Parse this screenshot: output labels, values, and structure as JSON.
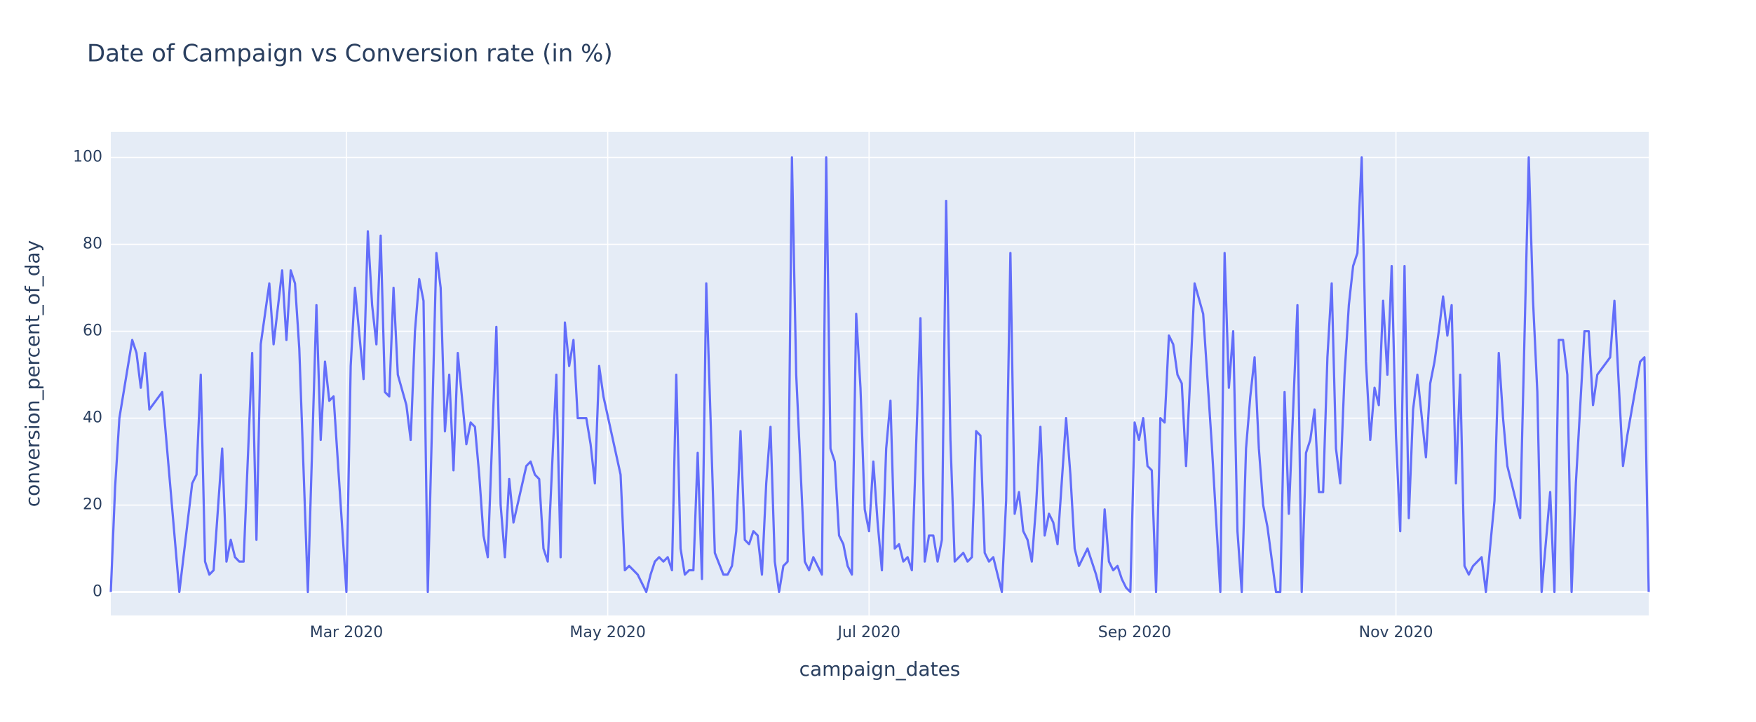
{
  "chart_data": {
    "type": "line",
    "title": "Date of Campaign vs Conversion rate (in %)",
    "x_label": "campaign_dates",
    "y_label": "conversion_percent_of_day",
    "color": "#636efa",
    "grid": true,
    "xlim": [
      "2020-01-06",
      "2020-12-30"
    ],
    "ylim": [
      -5.4,
      105.9
    ],
    "yticks": [
      0,
      20,
      40,
      60,
      80,
      100
    ],
    "xticks": [
      {
        "value": "2020-03-01",
        "label": "Mar 2020"
      },
      {
        "value": "2020-05-01",
        "label": "May 2020"
      },
      {
        "value": "2020-07-01",
        "label": "Jul 2020"
      },
      {
        "value": "2020-09-01",
        "label": "Sep 2020"
      },
      {
        "value": "2020-11-01",
        "label": "Nov 2020"
      }
    ],
    "x": [
      "2020-01-06",
      "2020-01-07",
      "2020-01-08",
      "2020-01-11",
      "2020-01-12",
      "2020-01-13",
      "2020-01-14",
      "2020-01-15",
      "2020-01-18",
      "2020-01-22",
      "2020-01-25",
      "2020-01-26",
      "2020-01-27",
      "2020-01-28",
      "2020-01-29",
      "2020-01-30",
      "2020-02-01",
      "2020-02-02",
      "2020-02-03",
      "2020-02-04",
      "2020-02-05",
      "2020-02-06",
      "2020-02-08",
      "2020-02-09",
      "2020-02-10",
      "2020-02-12",
      "2020-02-13",
      "2020-02-15",
      "2020-02-16",
      "2020-02-17",
      "2020-02-18",
      "2020-02-19",
      "2020-02-21",
      "2020-02-23",
      "2020-02-24",
      "2020-02-25",
      "2020-02-26",
      "2020-02-27",
      "2020-03-01",
      "2020-03-02",
      "2020-03-03",
      "2020-03-05",
      "2020-03-06",
      "2020-03-07",
      "2020-03-08",
      "2020-03-09",
      "2020-03-10",
      "2020-03-11",
      "2020-03-12",
      "2020-03-13",
      "2020-03-15",
      "2020-03-16",
      "2020-03-17",
      "2020-03-18",
      "2020-03-19",
      "2020-03-20",
      "2020-03-22",
      "2020-03-23",
      "2020-03-24",
      "2020-03-25",
      "2020-03-26",
      "2020-03-27",
      "2020-03-29",
      "2020-03-30",
      "2020-03-31",
      "2020-04-01",
      "2020-04-02",
      "2020-04-03",
      "2020-04-05",
      "2020-04-06",
      "2020-04-07",
      "2020-04-08",
      "2020-04-09",
      "2020-04-12",
      "2020-04-13",
      "2020-04-14",
      "2020-04-15",
      "2020-04-16",
      "2020-04-17",
      "2020-04-19",
      "2020-04-20",
      "2020-04-21",
      "2020-04-22",
      "2020-04-23",
      "2020-04-24",
      "2020-04-26",
      "2020-04-27",
      "2020-04-28",
      "2020-04-29",
      "2020-04-30",
      "2020-05-04",
      "2020-05-05",
      "2020-05-06",
      "2020-05-07",
      "2020-05-08",
      "2020-05-09",
      "2020-05-10",
      "2020-05-11",
      "2020-05-12",
      "2020-05-13",
      "2020-05-14",
      "2020-05-15",
      "2020-05-16",
      "2020-05-17",
      "2020-05-18",
      "2020-05-19",
      "2020-05-20",
      "2020-05-21",
      "2020-05-22",
      "2020-05-23",
      "2020-05-24",
      "2020-05-26",
      "2020-05-28",
      "2020-05-29",
      "2020-05-30",
      "2020-05-31",
      "2020-06-01",
      "2020-06-02",
      "2020-06-03",
      "2020-06-04",
      "2020-06-05",
      "2020-06-06",
      "2020-06-07",
      "2020-06-08",
      "2020-06-09",
      "2020-06-10",
      "2020-06-11",
      "2020-06-12",
      "2020-06-13",
      "2020-06-14",
      "2020-06-16",
      "2020-06-17",
      "2020-06-18",
      "2020-06-19",
      "2020-06-20",
      "2020-06-21",
      "2020-06-22",
      "2020-06-23",
      "2020-06-24",
      "2020-06-25",
      "2020-06-26",
      "2020-06-27",
      "2020-06-28",
      "2020-06-29",
      "2020-06-30",
      "2020-07-01",
      "2020-07-02",
      "2020-07-03",
      "2020-07-04",
      "2020-07-05",
      "2020-07-06",
      "2020-07-07",
      "2020-07-08",
      "2020-07-09",
      "2020-07-10",
      "2020-07-11",
      "2020-07-13",
      "2020-07-14",
      "2020-07-15",
      "2020-07-16",
      "2020-07-17",
      "2020-07-18",
      "2020-07-19",
      "2020-07-20",
      "2020-07-21",
      "2020-07-22",
      "2020-07-23",
      "2020-07-24",
      "2020-07-25",
      "2020-07-26",
      "2020-07-27",
      "2020-07-28",
      "2020-07-29",
      "2020-07-30",
      "2020-07-31",
      "2020-08-01",
      "2020-08-02",
      "2020-08-03",
      "2020-08-04",
      "2020-08-05",
      "2020-08-06",
      "2020-08-07",
      "2020-08-08",
      "2020-08-09",
      "2020-08-10",
      "2020-08-11",
      "2020-08-12",
      "2020-08-13",
      "2020-08-14",
      "2020-08-16",
      "2020-08-17",
      "2020-08-18",
      "2020-08-19",
      "2020-08-20",
      "2020-08-21",
      "2020-08-23",
      "2020-08-24",
      "2020-08-25",
      "2020-08-26",
      "2020-08-27",
      "2020-08-28",
      "2020-08-29",
      "2020-08-30",
      "2020-08-31",
      "2020-09-01",
      "2020-09-02",
      "2020-09-03",
      "2020-09-04",
      "2020-09-05",
      "2020-09-06",
      "2020-09-07",
      "2020-09-08",
      "2020-09-09",
      "2020-09-10",
      "2020-09-11",
      "2020-09-12",
      "2020-09-13",
      "2020-09-15",
      "2020-09-17",
      "2020-09-19",
      "2020-09-21",
      "2020-09-22",
      "2020-09-23",
      "2020-09-24",
      "2020-09-25",
      "2020-09-26",
      "2020-09-27",
      "2020-09-28",
      "2020-09-29",
      "2020-09-30",
      "2020-10-01",
      "2020-10-02",
      "2020-10-04",
      "2020-10-05",
      "2020-10-06",
      "2020-10-07",
      "2020-10-09",
      "2020-10-10",
      "2020-10-11",
      "2020-10-12",
      "2020-10-13",
      "2020-10-14",
      "2020-10-15",
      "2020-10-16",
      "2020-10-17",
      "2020-10-18",
      "2020-10-19",
      "2020-10-20",
      "2020-10-21",
      "2020-10-22",
      "2020-10-23",
      "2020-10-24",
      "2020-10-25",
      "2020-10-26",
      "2020-10-27",
      "2020-10-28",
      "2020-10-29",
      "2020-10-30",
      "2020-10-31",
      "2020-11-01",
      "2020-11-02",
      "2020-11-03",
      "2020-11-04",
      "2020-11-05",
      "2020-11-06",
      "2020-11-08",
      "2020-11-09",
      "2020-11-10",
      "2020-11-11",
      "2020-11-12",
      "2020-11-13",
      "2020-11-14",
      "2020-11-15",
      "2020-11-16",
      "2020-11-17",
      "2020-11-18",
      "2020-11-19",
      "2020-11-21",
      "2020-11-22",
      "2020-11-24",
      "2020-11-25",
      "2020-11-26",
      "2020-11-27",
      "2020-11-30",
      "2020-12-02",
      "2020-12-03",
      "2020-12-04",
      "2020-12-05",
      "2020-12-07",
      "2020-12-08",
      "2020-12-09",
      "2020-12-10",
      "2020-12-11",
      "2020-12-12",
      "2020-12-13",
      "2020-12-15",
      "2020-12-16",
      "2020-12-17",
      "2020-12-18",
      "2020-12-21",
      "2020-12-22",
      "2020-12-24",
      "2020-12-25",
      "2020-12-28",
      "2020-12-29",
      "2020-12-30"
    ],
    "values": [
      0,
      24,
      40,
      58,
      55,
      47,
      55,
      42,
      46,
      0,
      25,
      27,
      50,
      7,
      4,
      5,
      33,
      7,
      12,
      8,
      7,
      7,
      55,
      12,
      57,
      71,
      57,
      74,
      58,
      74,
      71,
      56,
      0,
      66,
      35,
      53,
      44,
      45,
      0,
      52,
      70,
      49,
      83,
      66,
      57,
      82,
      46,
      45,
      70,
      50,
      43,
      35,
      60,
      72,
      67,
      0,
      78,
      70,
      37,
      50,
      28,
      55,
      34,
      39,
      38,
      27,
      13,
      8,
      61,
      20,
      8,
      26,
      16,
      29,
      30,
      27,
      26,
      10,
      7,
      50,
      8,
      62,
      52,
      58,
      40,
      40,
      34,
      25,
      52,
      45,
      27,
      5,
      6,
      5,
      4,
      2,
      0,
      4,
      7,
      8,
      7,
      8,
      5,
      50,
      10,
      4,
      5,
      5,
      32,
      3,
      71,
      9,
      4,
      4,
      6,
      14,
      37,
      12,
      11,
      14,
      13,
      4,
      25,
      38,
      7,
      0,
      6,
      7,
      100,
      50,
      7,
      5,
      8,
      6,
      4,
      100,
      33,
      30,
      13,
      11,
      6,
      4,
      64,
      47,
      19,
      14,
      30,
      16,
      5,
      33,
      44,
      10,
      11,
      7,
      8,
      5,
      63,
      7,
      13,
      13,
      7,
      12,
      90,
      35,
      7,
      8,
      9,
      7,
      8,
      37,
      36,
      9,
      7,
      8,
      4,
      0,
      21,
      78,
      18,
      23,
      14,
      12,
      7,
      20,
      38,
      13,
      18,
      16,
      11,
      40,
      27,
      10,
      6,
      8,
      10,
      4,
      0,
      19,
      7,
      5,
      6,
      3,
      1,
      0,
      39,
      35,
      40,
      29,
      28,
      0,
      40,
      39,
      59,
      57,
      50,
      48,
      29,
      71,
      64,
      34,
      0,
      78,
      47,
      60,
      14,
      0,
      33,
      45,
      54,
      33,
      20,
      15,
      0,
      0,
      46,
      18,
      66,
      0,
      32,
      35,
      42,
      23,
      23,
      54,
      71,
      33,
      25,
      50,
      66,
      75,
      78,
      100,
      53,
      35,
      47,
      43,
      67,
      50,
      75,
      36,
      14,
      75,
      17,
      42,
      50,
      31,
      48,
      53,
      60,
      68,
      59,
      66,
      25,
      50,
      6,
      4,
      6,
      8,
      0,
      21,
      55,
      40,
      29,
      17,
      100,
      67,
      46,
      0,
      23,
      0,
      58,
      58,
      50,
      0,
      25,
      60,
      60,
      43,
      50,
      54,
      67,
      29,
      36,
      53,
      54,
      0
    ]
  }
}
